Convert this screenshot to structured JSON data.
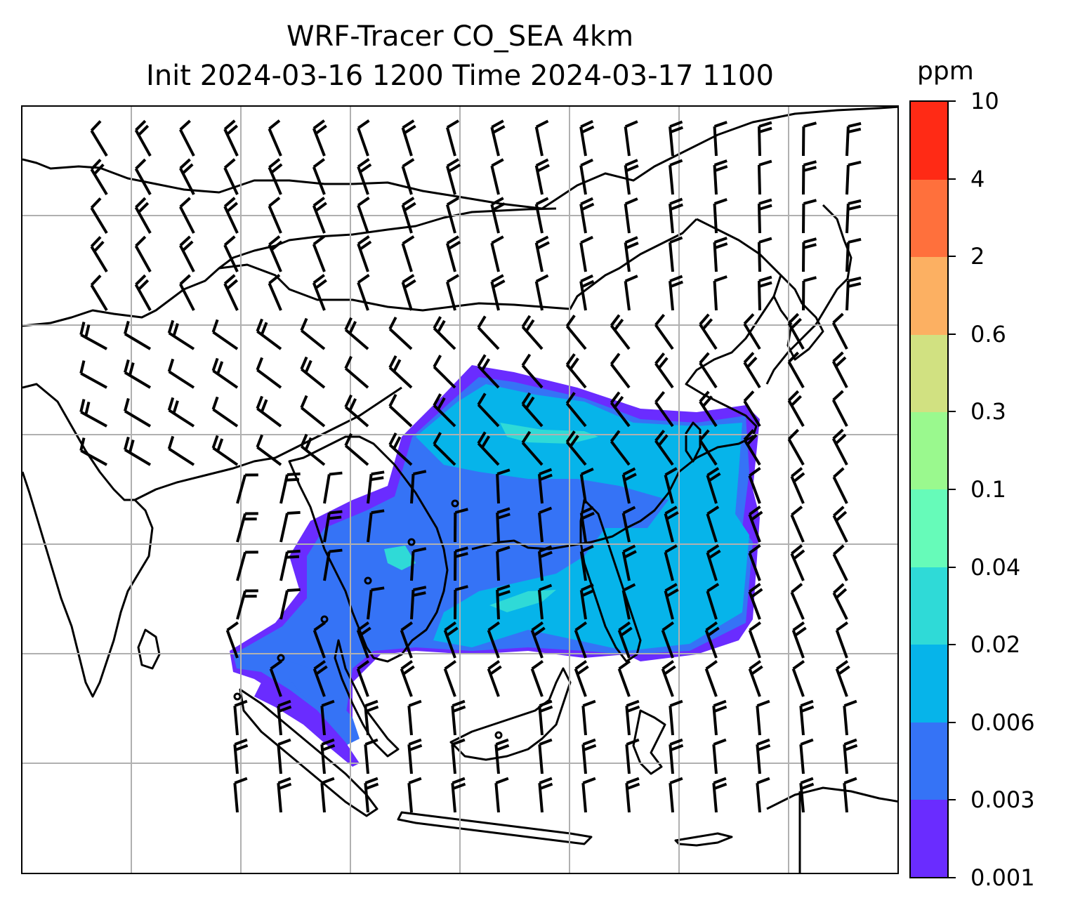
{
  "title": {
    "line1": "WRF-Tracer CO_SEA 4km",
    "line2": "Init 2024-03-16 1200 Time 2024-03-17 1100"
  },
  "colorbar": {
    "units": "ppm",
    "levels": [
      "0.001",
      "0.003",
      "0.006",
      "0.02",
      "0.04",
      "0.1",
      "0.3",
      "0.6",
      "2",
      "4",
      "10"
    ],
    "colors": [
      "#6a2cff",
      "#3573f6",
      "#06b4ea",
      "#2fdad7",
      "#66fbb9",
      "#9af98e",
      "#d1e181",
      "#fcb062",
      "#ff703c",
      "#ff2a15"
    ]
  },
  "map": {
    "colors": {
      "land_outline": "#000000",
      "gridline": "#b0b0b0",
      "barb": "#000000"
    },
    "gridlines": true
  }
}
